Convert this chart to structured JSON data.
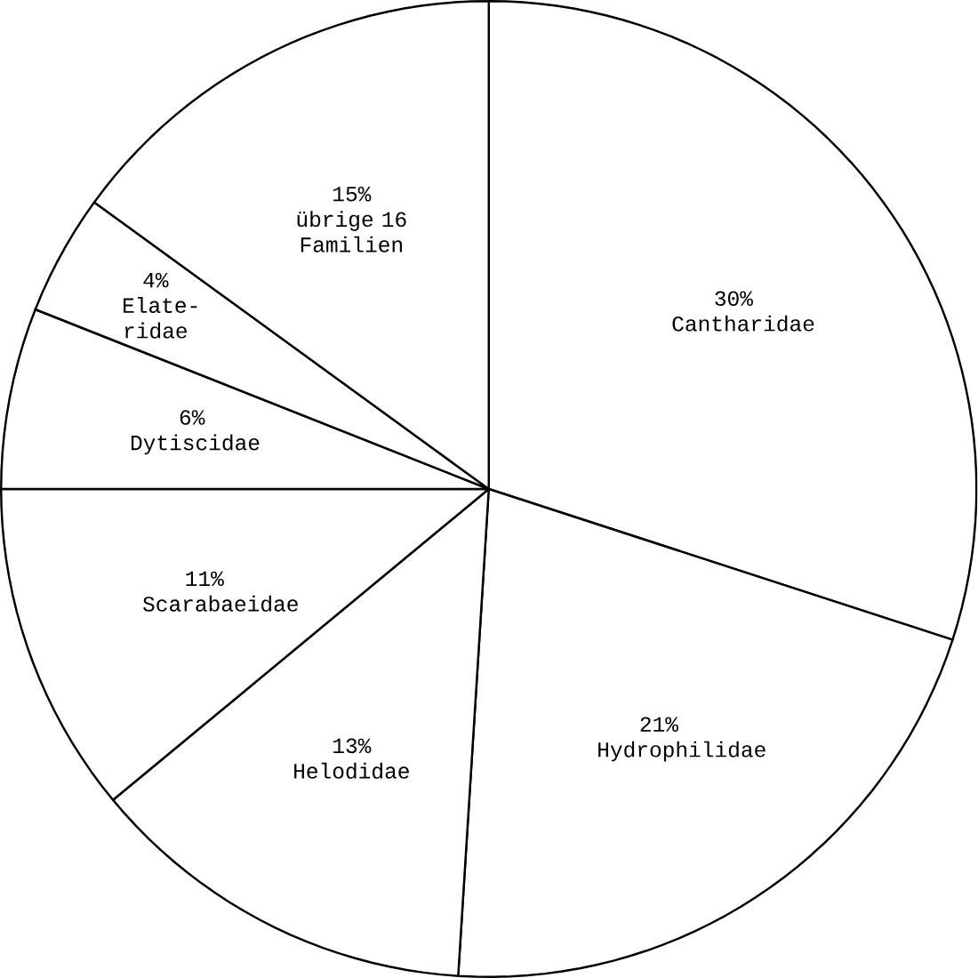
{
  "chart_data": {
    "type": "pie",
    "categories": [
      "Cantharidae",
      "Hydrophilidae",
      "Helodidae",
      "Scarabaeidae",
      "Dytiscidae",
      "Elate-ridae",
      "übrige 16 Familien"
    ],
    "values": [
      30,
      21,
      13,
      11,
      6,
      4,
      15
    ],
    "value_labels": [
      "30%",
      "21%",
      "13%",
      "11%",
      "6%",
      "4%",
      "15%"
    ],
    "colors": [
      "#ffffff",
      "#ffffff",
      "#ffffff",
      "#ffffff",
      "#ffffff",
      "#ffffff",
      "#ffffff"
    ]
  }
}
